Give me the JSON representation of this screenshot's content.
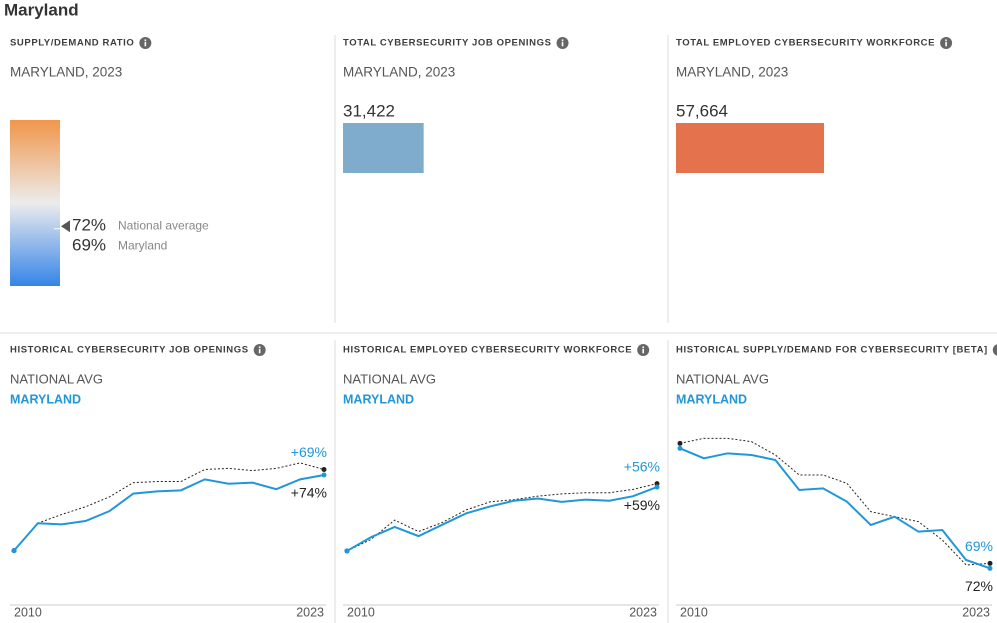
{
  "page_title": "Maryland",
  "chart_data": [
    {
      "type": "gauge",
      "title": "SUPPLY/DEMAND RATIO",
      "subtitle": "MARYLAND, 2023",
      "categories": [
        "National average",
        "Maryland"
      ],
      "values": [
        72,
        69
      ],
      "value_labels": [
        "72%",
        "69%"
      ],
      "ylim": [
        0,
        200
      ],
      "colors": [
        "#f0964a",
        "#ececec",
        "#3584e8"
      ]
    },
    {
      "type": "bar",
      "title": "TOTAL CYBERSECURITY JOB OPENINGS",
      "subtitle": "MARYLAND, 2023",
      "values": [
        31422
      ],
      "value_labels": [
        "31,422"
      ],
      "color": "#7fabcd"
    },
    {
      "type": "bar",
      "title": "TOTAL EMPLOYED CYBERSECURITY WORKFORCE",
      "subtitle": "MARYLAND, 2023",
      "values": [
        57664
      ],
      "value_labels": [
        "57,664"
      ],
      "color": "#e4734d"
    },
    {
      "type": "line",
      "title": "HISTORICAL CYBERSECURITY JOB OPENINGS",
      "x": [
        2010,
        2011,
        2012,
        2013,
        2014,
        2015,
        2016,
        2017,
        2018,
        2019,
        2020,
        2021,
        2022,
        2023
      ],
      "xlim": [
        2010,
        2023
      ],
      "xticks": [
        2010,
        2023
      ],
      "ylim": [
        -45,
        110
      ],
      "series": [
        {
          "name": "NATIONAL AVG",
          "color": "#222222",
          "values": [
            0,
            25,
            33,
            40,
            49,
            62,
            63,
            63,
            74,
            75,
            73,
            75,
            80,
            74
          ],
          "end_label": "+74%"
        },
        {
          "name": "MARYLAND",
          "color": "#2196d8",
          "values": [
            0,
            25,
            24,
            27,
            36,
            52,
            54,
            55,
            65,
            61,
            62,
            56,
            65,
            69
          ],
          "end_label": "+69%"
        }
      ]
    },
    {
      "type": "line",
      "title": "HISTORICAL EMPLOYED CYBERSECURITY WORKFORCE",
      "x": [
        2010,
        2011,
        2012,
        2013,
        2014,
        2015,
        2016,
        2017,
        2018,
        2019,
        2020,
        2021,
        2022,
        2023
      ],
      "xlim": [
        2010,
        2023
      ],
      "xticks": [
        2010,
        2023
      ],
      "ylim": [
        -43,
        106
      ],
      "series": [
        {
          "name": "NATIONAL AVG",
          "color": "#222222",
          "values": [
            0,
            10,
            27,
            17,
            25,
            36,
            43,
            45,
            48,
            50,
            51,
            51,
            54,
            59
          ],
          "end_label": "+59%"
        },
        {
          "name": "MARYLAND",
          "color": "#2196d8",
          "values": [
            0,
            12,
            21,
            13,
            23,
            33,
            39,
            44,
            46,
            43,
            45,
            44,
            48,
            56
          ],
          "end_label": "+56%"
        }
      ]
    },
    {
      "type": "line",
      "title": "HISTORICAL SUPPLY/DEMAND FOR CYBERSECURITY [BETA]",
      "x": [
        2010,
        2011,
        2012,
        2013,
        2014,
        2015,
        2016,
        2017,
        2018,
        2019,
        2020,
        2021,
        2022,
        2023
      ],
      "xlim": [
        2010,
        2023
      ],
      "xticks": [
        2010,
        2023
      ],
      "ylim": [
        50,
        152
      ],
      "series": [
        {
          "name": "NATIONAL AVG",
          "color": "#222222",
          "values": [
            144,
            147,
            147,
            145,
            137,
            125,
            125,
            120,
            103,
            100,
            97,
            86,
            71,
            72
          ],
          "end_label": "72%"
        },
        {
          "name": "MARYLAND",
          "color": "#2196d8",
          "values": [
            141,
            135,
            138,
            137,
            134,
            116,
            117,
            109,
            95,
            100,
            91,
            92,
            74,
            69
          ],
          "end_label": "69%"
        }
      ]
    }
  ]
}
